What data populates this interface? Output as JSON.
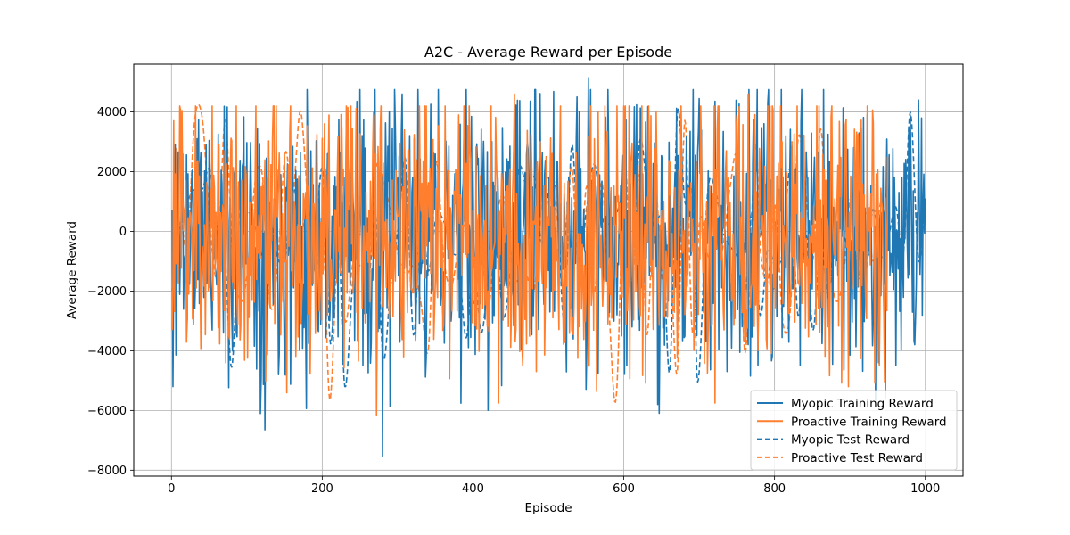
{
  "chart_data": {
    "type": "line",
    "title": "A2C - Average Reward per Episode",
    "xlabel": "Episode",
    "ylabel": "Average Reward",
    "xlim": [
      -50,
      1050
    ],
    "ylim": [
      -8200,
      5600
    ],
    "xticks": [
      0,
      200,
      400,
      600,
      800,
      1000
    ],
    "yticks": [
      -8000,
      -6000,
      -4000,
      -2000,
      0,
      2000,
      4000
    ],
    "xtick_labels": [
      "0",
      "200",
      "400",
      "600",
      "800",
      "1000"
    ],
    "ytick_labels": [
      "−8000",
      "−6000",
      "−4000",
      "−2000",
      "0",
      "2000",
      "4000"
    ],
    "grid": true,
    "legend_position": "lower-right",
    "series": [
      {
        "name": "Myopic Training Reward",
        "color": "#1f77b4",
        "style": "solid",
        "x_range": [
          1,
          1000
        ],
        "highlights": [
          [
            2,
            -5200
          ],
          [
            5,
            2900
          ],
          [
            118,
            -6100
          ],
          [
            280,
            -7550
          ],
          [
            553,
            5150
          ],
          [
            700,
            4450
          ],
          [
            980,
            3900
          ],
          [
            1000,
            1100
          ]
        ],
        "y_range": [
          -7550,
          5150
        ]
      },
      {
        "name": "Proactive Training Reward",
        "color": "#ff7f2e",
        "style": "solid",
        "x_range": [
          1,
          950
        ],
        "highlights": [
          [
            2,
            -1800
          ],
          [
            272,
            -6150
          ],
          [
            455,
            4600
          ],
          [
            765,
            4600
          ],
          [
            950,
            2500
          ]
        ],
        "y_range": [
          -6150,
          4600
        ]
      },
      {
        "name": "Myopic Test Reward",
        "color": "#1f77b4",
        "style": "dashed",
        "x_range": [
          1,
          1000
        ],
        "highlights": [
          [
            80,
            -4550
          ],
          [
            230,
            -5200
          ],
          [
            700,
            4450
          ],
          [
            698,
            -5050
          ],
          [
            980,
            4000
          ]
        ],
        "y_range": [
          -5200,
          4450
        ]
      },
      {
        "name": "Proactive Test Reward",
        "color": "#ff7f2e",
        "style": "dashed",
        "x_range": [
          1,
          950
        ],
        "highlights": [
          [
            210,
            -5650
          ],
          [
            590,
            -5550
          ],
          [
            775,
            2900
          ]
        ],
        "y_range": [
          -5650,
          4000
        ]
      }
    ]
  }
}
